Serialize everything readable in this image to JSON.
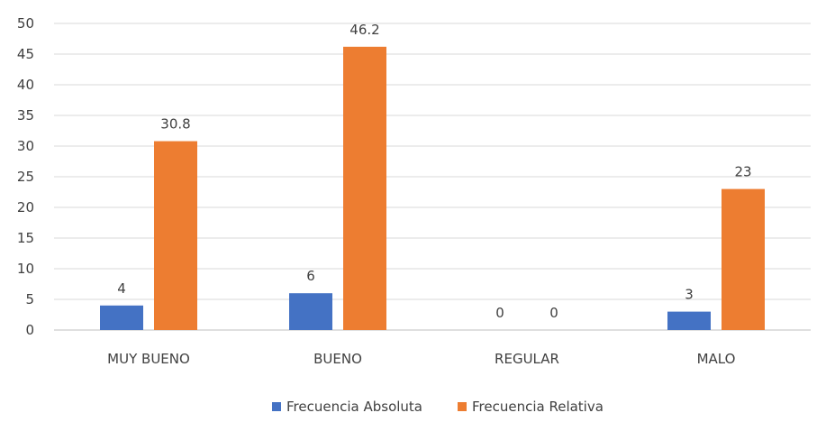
{
  "chart_data": {
    "type": "bar",
    "categories": [
      "MUY BUENO",
      "BUENO",
      "REGULAR",
      "MALO"
    ],
    "series": [
      {
        "name": "Frecuencia Absoluta",
        "values": [
          4,
          6,
          0,
          3
        ],
        "labels": [
          "4",
          "6",
          "0",
          "3"
        ],
        "color": "#4472C4"
      },
      {
        "name": "Frecuencia Relativa",
        "values": [
          30.8,
          46.2,
          0,
          23
        ],
        "labels": [
          "30.8",
          "46.2",
          "0",
          "23"
        ],
        "color": "#ED7D31"
      }
    ],
    "yticks": [
      0,
      5,
      10,
      15,
      20,
      25,
      30,
      35,
      40,
      45,
      50
    ],
    "ylim": [
      0,
      50
    ],
    "grid": true,
    "legend_position": "bottom"
  }
}
